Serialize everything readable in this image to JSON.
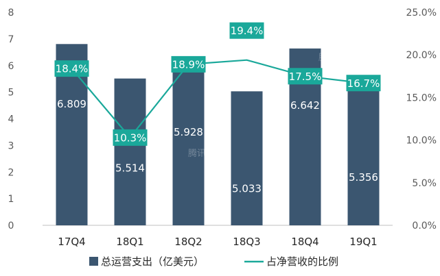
{
  "chart_data": {
    "type": "bar",
    "categories": [
      "17Q4",
      "18Q1",
      "18Q2",
      "18Q3",
      "18Q4",
      "19Q1"
    ],
    "series": [
      {
        "name": "总运营支出（亿美元）",
        "type": "bar",
        "axis": "left",
        "values": [
          6.809,
          5.514,
          5.928,
          5.033,
          6.642,
          5.356
        ],
        "labels": [
          "6.809",
          "5.514",
          "5.928",
          "5.033",
          "6.642",
          "5.356"
        ],
        "color": "#3b5670"
      },
      {
        "name": "占净营收的比例",
        "type": "line",
        "axis": "right",
        "values": [
          18.4,
          10.3,
          18.9,
          19.4,
          17.5,
          16.7
        ],
        "labels": [
          "18.4%",
          "10.3%",
          "18.9%",
          "19.4%",
          "17.5%",
          "16.7%"
        ],
        "color": "#1aa89a"
      }
    ],
    "y_left": {
      "min": 0,
      "max": 8,
      "ticks": [
        "0",
        "1",
        "2",
        "3",
        "4",
        "5",
        "6",
        "7",
        "8"
      ]
    },
    "y_right": {
      "min": 0,
      "max": 25,
      "ticks": [
        "0.0%",
        "5.0%",
        "10.0%",
        "15.0%",
        "20.0%",
        "25.0%"
      ]
    },
    "legend": "bottom",
    "grid": false,
    "watermark": "腾讯科技"
  }
}
